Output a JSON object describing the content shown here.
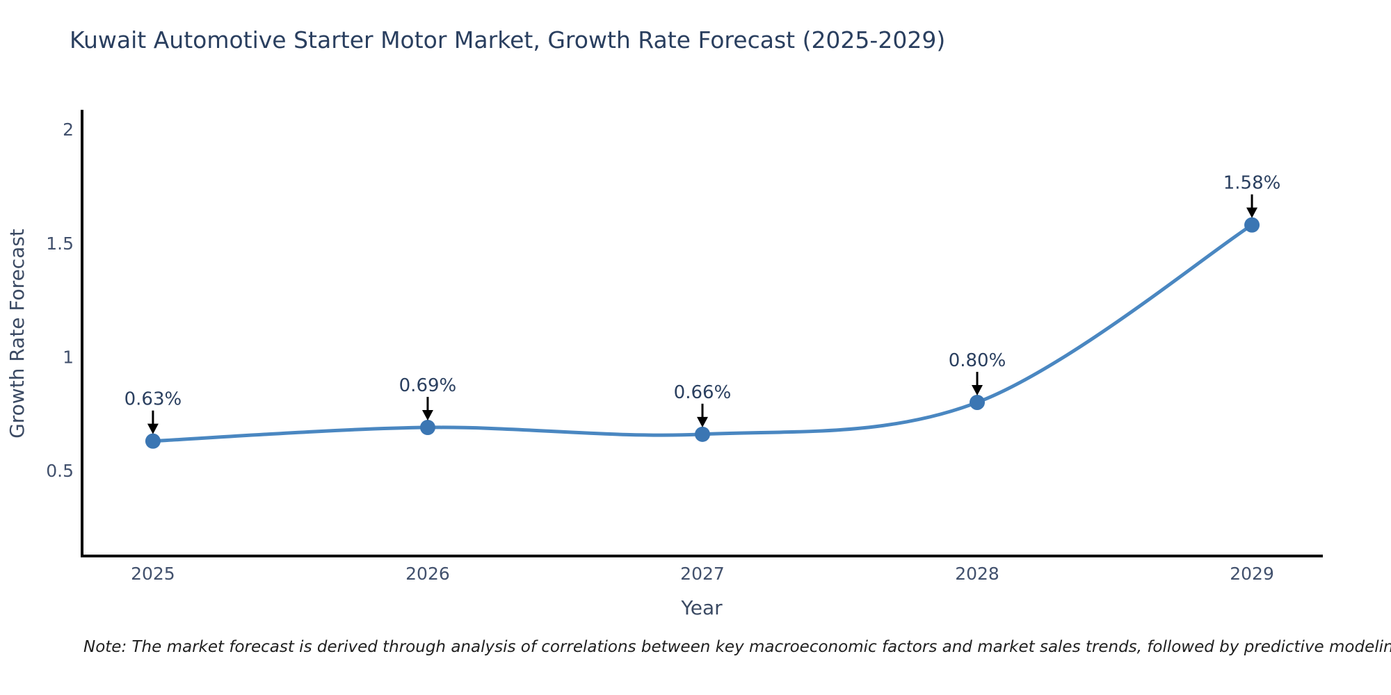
{
  "title": "Kuwait Automotive Starter Motor Market, Growth Rate Forecast (2025-2029)",
  "note": "Note: The market forecast is derived through analysis of correlations between key macroeconomic factors and market sales trends, followed by predictive modeling to project future sales",
  "chart_data": {
    "type": "line",
    "title": "Kuwait Automotive Starter Motor Market, Growth Rate Forecast (2025-2029)",
    "x": [
      2025,
      2026,
      2027,
      2028,
      2029
    ],
    "categories": [
      "2025",
      "2026",
      "2027",
      "2028",
      "2029"
    ],
    "values": [
      0.63,
      0.69,
      0.66,
      0.8,
      1.58
    ],
    "point_labels": [
      "0.63%",
      "0.69%",
      "0.66%",
      "0.80%",
      "1.58%"
    ],
    "xlabel": "Year",
    "ylabel": "Growth Rate Forecast",
    "yticks": [
      0.5,
      1,
      1.5,
      2
    ],
    "ytick_labels": [
      "0.5",
      "1",
      "1.5",
      "2"
    ],
    "ylim": [
      0.125,
      2.08
    ],
    "xlim": [
      2024.742,
      2029.253
    ],
    "grid": false,
    "legend_position": "none",
    "line_shape": "spline",
    "line_color": "#4a87c1",
    "marker_color": "#3b76b3",
    "axis_color": "#000000",
    "tick_color": "#42516d",
    "title_color": "#2a3f5f",
    "annotation_color": "#2a3f5f",
    "arrow_color": "#000000",
    "background_color": "#ffffff"
  }
}
